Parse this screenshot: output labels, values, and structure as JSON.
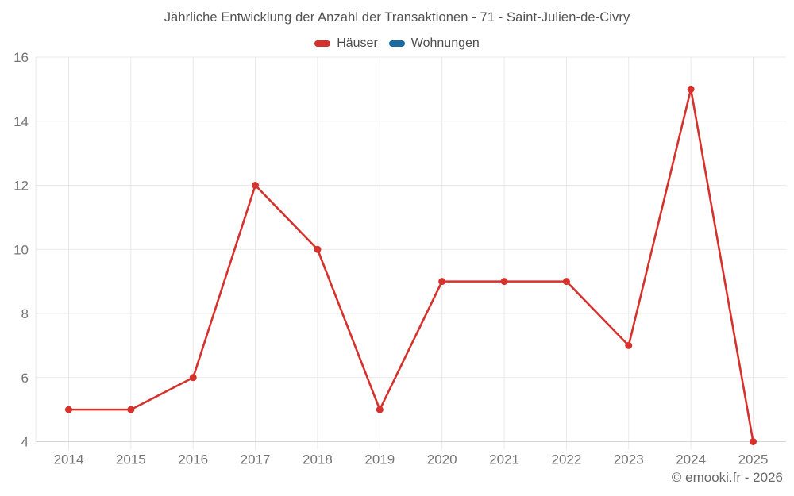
{
  "header": {
    "title": "Jährliche Entwicklung der Anzahl der Transaktionen - 71 - Saint-Julien-de-Civry"
  },
  "legend": {
    "items": [
      {
        "label": "Häuser",
        "color": "#d5312d"
      },
      {
        "label": "Wohnungen",
        "color": "#1b6ba3"
      }
    ]
  },
  "footer": {
    "watermark": "© emooki.fr - 2026"
  },
  "colors": {
    "grid": "#e9e9e9",
    "axis_line": "#d6d6d6",
    "tick_label": "#757575",
    "series_red": "#d5312d",
    "series_blue": "#1b6ba3"
  },
  "chart_data": {
    "type": "line",
    "title": "Jährliche Entwicklung der Anzahl der Transaktionen - 71 - Saint-Julien-de-Civry",
    "categories": [
      "2014",
      "2015",
      "2016",
      "2017",
      "2018",
      "2019",
      "2020",
      "2021",
      "2022",
      "2023",
      "2024",
      "2025"
    ],
    "series": [
      {
        "name": "Häuser",
        "color": "#d5312d",
        "values": [
          5,
          5,
          6,
          12,
          10,
          5,
          9,
          9,
          9,
          7,
          15,
          4
        ]
      },
      {
        "name": "Wohnungen",
        "color": "#1b6ba3",
        "values": []
      }
    ],
    "xlabel": "",
    "ylabel": "",
    "ylim": [
      4,
      16
    ],
    "yticks": [
      4,
      6,
      8,
      10,
      12,
      14,
      16
    ],
    "grid": true,
    "legend_position": "top",
    "marker_radius": 4.5,
    "line_width": 2.6
  }
}
